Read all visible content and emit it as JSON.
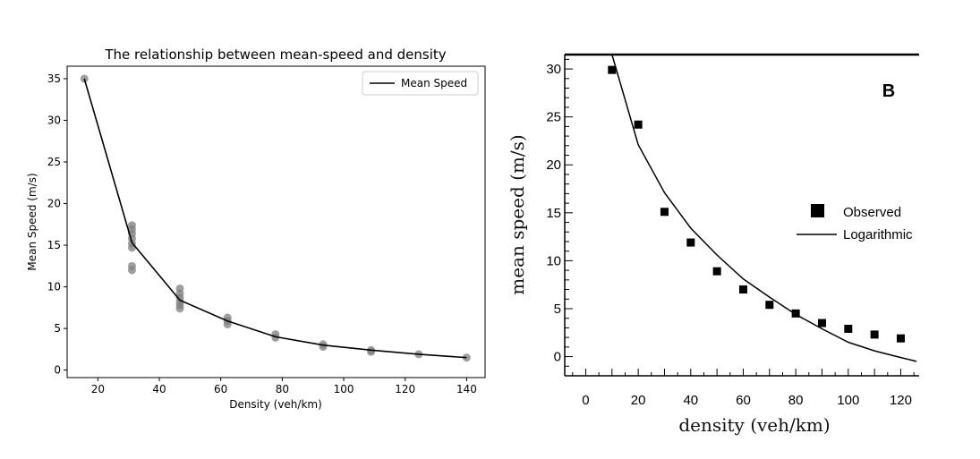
{
  "chart_data": [
    {
      "type": "scatter",
      "title": "The relationship between mean-speed and density",
      "xlabel": "Density (veh/km)",
      "ylabel": "Mean Speed (m/s)",
      "xlim": [
        10,
        146
      ],
      "ylim": [
        -0.9,
        36.5
      ],
      "xticks": [
        "20",
        "40",
        "60",
        "80",
        "100",
        "120",
        "140"
      ],
      "yticks": [
        "0",
        "5",
        "10",
        "15",
        "20",
        "25",
        "30",
        "35"
      ],
      "grid": false,
      "legend_position": "top-right",
      "legend": [
        "Mean Speed"
      ],
      "series": [
        {
          "name": "Mean Speed",
          "kind": "line",
          "color": "#000000",
          "x": [
            15.6,
            31.1,
            46.7,
            62.2,
            77.8,
            93.3,
            108.9,
            124.4,
            140
          ],
          "y": [
            35,
            15.3,
            8.4,
            5.9,
            4.0,
            3.0,
            2.4,
            1.9,
            1.5
          ]
        },
        {
          "kind": "scatter",
          "color": "#7f7f7f",
          "points": [
            [
              15.6,
              35
            ],
            [
              31.1,
              17.4
            ],
            [
              31.1,
              16.9
            ],
            [
              31.1,
              16.4
            ],
            [
              31.1,
              15.8
            ],
            [
              31.1,
              15.2
            ],
            [
              31.1,
              14.7
            ],
            [
              31.1,
              12.5
            ],
            [
              31.1,
              12.0
            ],
            [
              46.7,
              9.8
            ],
            [
              46.7,
              9.2
            ],
            [
              46.7,
              8.7
            ],
            [
              46.7,
              8.2
            ],
            [
              46.7,
              7.8
            ],
            [
              46.7,
              7.4
            ],
            [
              62.2,
              6.3
            ],
            [
              62.2,
              5.9
            ],
            [
              62.2,
              5.5
            ],
            [
              77.8,
              4.3
            ],
            [
              77.8,
              3.9
            ],
            [
              93.3,
              3.1
            ],
            [
              93.3,
              2.8
            ],
            [
              108.9,
              2.4
            ],
            [
              108.9,
              2.2
            ],
            [
              124.4,
              1.9
            ],
            [
              140,
              1.5
            ]
          ]
        }
      ]
    },
    {
      "type": "scatter",
      "title": "",
      "panel_label": "B",
      "xlabel": "density (veh/km)",
      "ylabel": "mean speed (m/s)",
      "xlim": [
        -8,
        127
      ],
      "ylim": [
        -2,
        31.5
      ],
      "xticks": [
        "0",
        "20",
        "40",
        "60",
        "80",
        "100",
        "120"
      ],
      "yticks": [
        "0",
        "5",
        "10",
        "15",
        "20",
        "25",
        "30"
      ],
      "grid": false,
      "legend_position": "right",
      "legend": [
        "Observed",
        "Logarithmic"
      ],
      "series": [
        {
          "name": "Observed",
          "kind": "scatter",
          "marker": "square",
          "color": "#000000",
          "x": [
            10,
            20,
            30,
            40,
            50,
            60,
            70,
            80,
            90,
            100,
            110,
            120
          ],
          "y": [
            29.9,
            24.2,
            15.1,
            11.9,
            8.9,
            7.0,
            5.4,
            4.5,
            3.5,
            2.9,
            2.3,
            1.9
          ]
        },
        {
          "name": "Logarithmic",
          "kind": "line",
          "color": "#000000",
          "x": [
            10,
            20,
            30,
            40,
            50,
            60,
            70,
            80,
            90,
            100,
            110,
            120,
            126
          ],
          "y": [
            31.5,
            22.1,
            17.1,
            13.4,
            10.6,
            8.1,
            6.2,
            4.4,
            2.9,
            1.5,
            0.6,
            -0.1,
            -0.5
          ]
        }
      ]
    }
  ]
}
